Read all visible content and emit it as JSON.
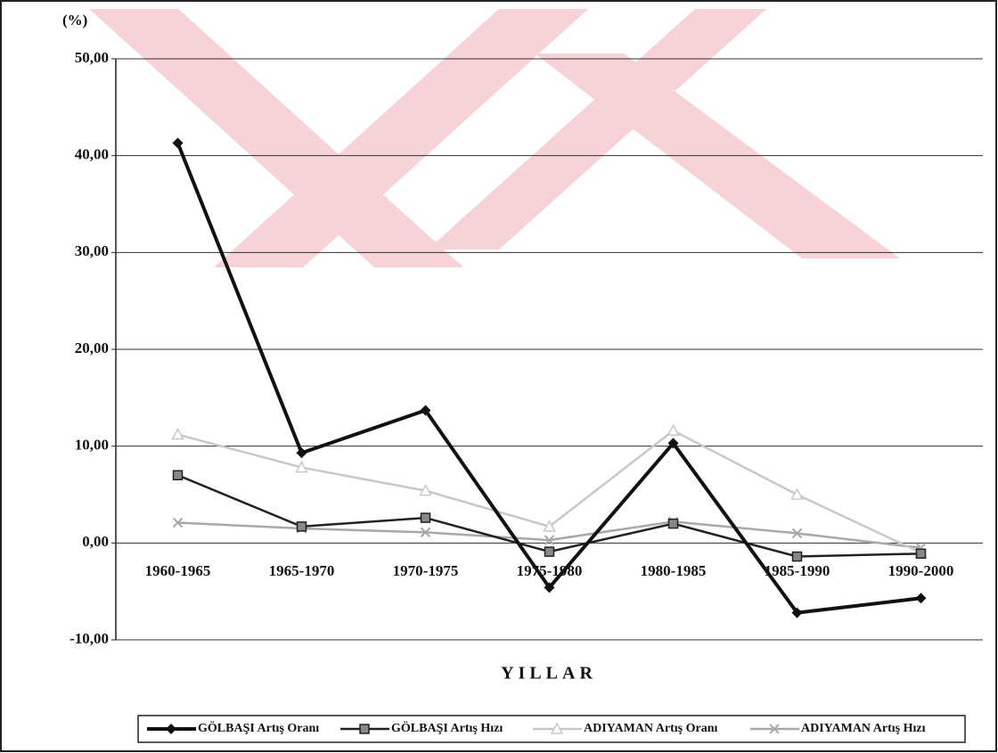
{
  "chart_data": {
    "type": "line",
    "y_unit_label": "(%)",
    "xlabel": "YILLAR",
    "categories": [
      "1960-1965",
      "1965-1970",
      "1970-1975",
      "1975-1980",
      "1980-1985",
      "1985-1990",
      "1990-2000"
    ],
    "series": [
      {
        "name": "GÖLBAŞI Artış Oranı",
        "color": "#111111",
        "marker": "diamond",
        "values": [
          41.3,
          9.3,
          13.7,
          -4.6,
          10.3,
          -7.2,
          -5.7
        ]
      },
      {
        "name": "GÖLBAŞI Artış Hızı",
        "color": "#222222",
        "marker": "square",
        "values": [
          7.0,
          1.7,
          2.6,
          -0.9,
          2.0,
          -1.4,
          -1.1
        ]
      },
      {
        "name": "ADIYAMAN  Artış Oranı",
        "color": "#c8c8c8",
        "marker": "triangle",
        "values": [
          11.2,
          7.8,
          5.4,
          1.7,
          11.6,
          5.0,
          -1.0
        ]
      },
      {
        "name": "ADIYAMAN  Artış Hızı",
        "color": "#a8a8a8",
        "marker": "x",
        "values": [
          2.1,
          1.5,
          1.1,
          0.3,
          2.2,
          1.0,
          -0.5
        ]
      }
    ],
    "ylim": [
      -10,
      50
    ],
    "yticks": [
      {
        "value": -10,
        "label": "-10,00"
      },
      {
        "value": 0,
        "label": "0,00"
      },
      {
        "value": 10,
        "label": "10,00"
      },
      {
        "value": 20,
        "label": "20,00"
      },
      {
        "value": 30,
        "label": "30,00"
      },
      {
        "value": 40,
        "label": "40,00"
      },
      {
        "value": 50,
        "label": "50,00"
      }
    ],
    "grid": true,
    "legend": "bottom"
  }
}
